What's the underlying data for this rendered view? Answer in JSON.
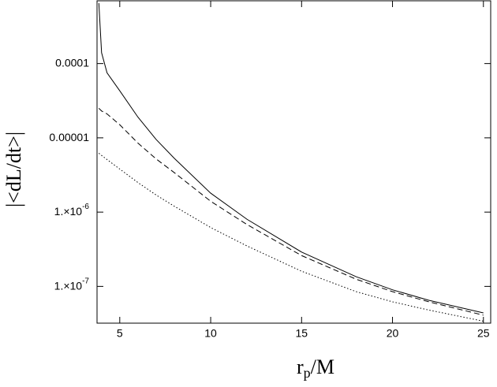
{
  "chart_data": {
    "type": "line",
    "xlabel": [
      "r",
      "p",
      "/M"
    ],
    "ylabel": "|<dL/dt>|",
    "x": [
      3.85,
      4,
      4.3,
      5,
      6,
      7,
      8,
      10,
      12,
      15,
      18,
      20,
      22,
      25
    ],
    "series": [
      {
        "color": "#000000",
        "style": "solid",
        "values": [
          0.00065,
          0.00014,
          7.5e-05,
          4.3e-05,
          1.9e-05,
          9.5e-06,
          5.3e-06,
          1.8e-06,
          8e-07,
          2.9e-07,
          1.35e-07,
          9e-08,
          6.5e-08,
          4.4e-08
        ]
      },
      {
        "color": "#000000",
        "style": "dashed",
        "values": [
          2.5e-05,
          2.3e-05,
          2.1e-05,
          1.5e-05,
          8.5e-06,
          5.2e-06,
          3.4e-06,
          1.4e-06,
          6.8e-07,
          2.6e-07,
          1.25e-07,
          8.5e-08,
          6.2e-08,
          4.1e-08
        ]
      },
      {
        "color": "#000000",
        "style": "dotted",
        "values": [
          6.2e-06,
          5.8e-06,
          5.1e-06,
          3.8e-06,
          2.5e-06,
          1.7e-06,
          1.2e-06,
          6.2e-07,
          3.5e-07,
          1.6e-07,
          8.5e-08,
          6.2e-08,
          4.8e-08,
          3.4e-08
        ]
      }
    ],
    "xlim": [
      3.75,
      25.4
    ],
    "xticks": [
      5,
      10,
      15,
      20,
      25
    ],
    "ylim": [
      3.2e-08,
      0.0007
    ],
    "yscale": "log",
    "yticks": [
      {
        "value": 0.0001,
        "label": "0.0001"
      },
      {
        "value": 1e-05,
        "label": "0.00001"
      },
      {
        "value": 1e-06,
        "label": "1.×10",
        "exponent": "-6"
      },
      {
        "value": 1e-07,
        "label": "1.×10",
        "exponent": "-7"
      }
    ]
  }
}
